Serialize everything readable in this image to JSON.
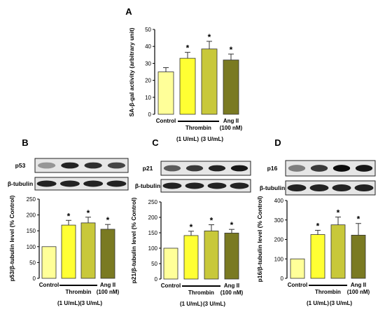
{
  "labels": {
    "control": "Control",
    "thrombin": "Thrombin",
    "ang": "Ang II",
    "ang_conc": "(100 nM)",
    "conc1": "(1 U/mL)",
    "conc3": "(3 U/mL)",
    "tubulin": "β-tubulin"
  },
  "colors": [
    "#ffff99",
    "#ffff33",
    "#c8c83a",
    "#7a7a22"
  ],
  "chart_data": [
    {
      "id": "A",
      "type": "bar",
      "ylabel": "SA-β-gal activity (arbitrary unit)",
      "ylim": [
        0,
        50
      ],
      "yticks": [
        0,
        10,
        20,
        30,
        40,
        50
      ],
      "categories": [
        "Control",
        "Thrombin (1 U/mL)",
        "Thrombin (3 U/mL)",
        "Ang II (100 nM)"
      ],
      "values": [
        25,
        33,
        38.5,
        32
      ],
      "errors": [
        2.5,
        3.5,
        4.5,
        3.5
      ],
      "significant": [
        false,
        true,
        true,
        true
      ]
    },
    {
      "id": "B",
      "type": "bar",
      "ylabel": "p53/β-tubulin level (% Control)",
      "blot_label": "p53",
      "ylim": [
        0,
        250
      ],
      "yticks": [
        0,
        50,
        100,
        150,
        200,
        250
      ],
      "categories": [
        "Control",
        "Thrombin (1 U/mL)",
        "Thrombin (3 U/mL)",
        "Ang II (100 nM)"
      ],
      "values": [
        100,
        168,
        175,
        155
      ],
      "errors": [
        0,
        15,
        18,
        15
      ],
      "significant": [
        false,
        true,
        true,
        true
      ]
    },
    {
      "id": "C",
      "type": "bar",
      "ylabel": "p21/β-tubulin level (% Control)",
      "blot_label": "p21",
      "ylim": [
        0,
        250
      ],
      "yticks": [
        0,
        50,
        100,
        150,
        200,
        250
      ],
      "categories": [
        "Control",
        "Thrombin (1 U/mL)",
        "Thrombin (3 U/mL)",
        "Ang II (100 nM)"
      ],
      "values": [
        100,
        141,
        156,
        149
      ],
      "errors": [
        0,
        14,
        20,
        12
      ],
      "significant": [
        false,
        true,
        true,
        true
      ]
    },
    {
      "id": "D",
      "type": "bar",
      "ylabel": "p16/β-tubulin level (% Control)",
      "blot_label": "p16",
      "ylim": [
        0,
        400
      ],
      "yticks": [
        0,
        100,
        200,
        300,
        400
      ],
      "categories": [
        "Control",
        "Thrombin (1 U/mL)",
        "Thrombin (3 U/mL)",
        "Ang II (100 nM)"
      ],
      "values": [
        100,
        225,
        275,
        222
      ],
      "errors": [
        0,
        22,
        40,
        60
      ],
      "significant": [
        false,
        true,
        true,
        true
      ]
    }
  ]
}
